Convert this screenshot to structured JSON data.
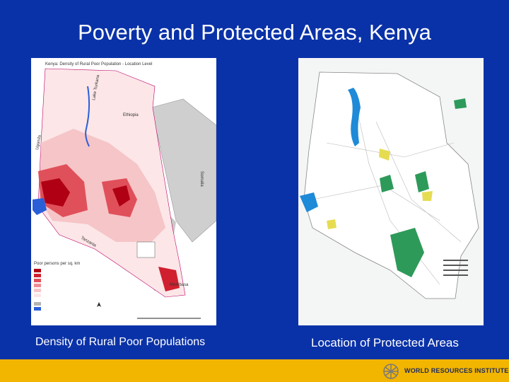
{
  "slide": {
    "title": "Poverty and Protected Areas, Kenya"
  },
  "left_map": {
    "header": "Kenya: Density of Rural Poor Population - Location Level",
    "caption": "Density of Rural Poor Populations",
    "country_labels": {
      "ethiopia": "Ethiopia",
      "uganda": "Uganda",
      "somalia": "Somalia",
      "tanzania": "Tanzania"
    },
    "place_labels": {
      "lake": "Lake Turkana",
      "mombasa": "Mombasa"
    },
    "legend_title": "Poor persons per sq. km",
    "colors": {
      "dark": "#b00014",
      "mid": "#e0505a",
      "light": "#f6c5c8",
      "faint": "#fce6e8",
      "no_data": "#b4b4b4",
      "water": "#2a5fd8"
    }
  },
  "right_map": {
    "caption": "Location of Protected Areas",
    "colors": {
      "land": "#ffffff",
      "protected": "#2e9a5a",
      "water": "#1e8ad8",
      "reserve": "#e6dc52",
      "neighbor": "#eceeef"
    }
  },
  "footer": {
    "org": "WORLD RESOURCES INSTITUTE",
    "logo_icon": "wri-logo-icon",
    "bar_color": "#f2b500"
  }
}
